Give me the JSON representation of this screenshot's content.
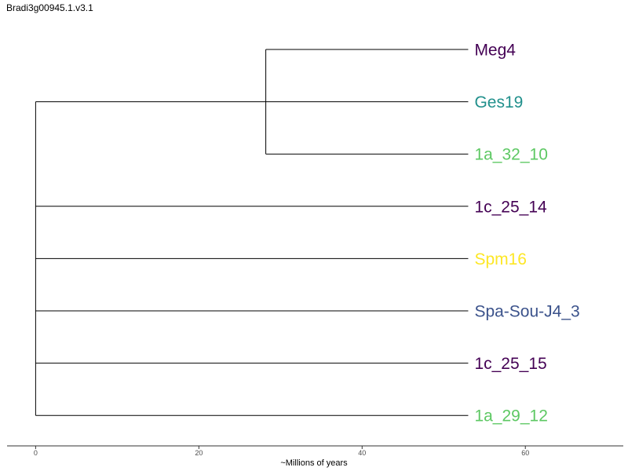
{
  "title": "Bradi3g00945.1.v3.1",
  "axis": {
    "label": "~Millions of years",
    "min": -3.5,
    "max": 72,
    "ticks": [
      0,
      20,
      40,
      60
    ]
  },
  "colors": {
    "branch": "#000000",
    "axis_line": "#333333"
  },
  "tree": {
    "root_x": 0,
    "clade_x": 28.2,
    "tip_x": 53
  },
  "tips": [
    {
      "label": "Meg4",
      "color": "#440154",
      "parent": "clade"
    },
    {
      "label": "Ges19",
      "color": "#21908C",
      "parent": "clade"
    },
    {
      "label": "1a_32_10",
      "color": "#5DC863",
      "parent": "clade"
    },
    {
      "label": "1c_25_14",
      "color": "#440154",
      "parent": "root"
    },
    {
      "label": "Spm16",
      "color": "#FDE725",
      "parent": "root"
    },
    {
      "label": "Spa-Sou-J4_3",
      "color": "#3B528B",
      "parent": "root"
    },
    {
      "label": "1c_25_15",
      "color": "#440154",
      "parent": "root"
    },
    {
      "label": "1a_29_12",
      "color": "#5DC863",
      "parent": "root"
    }
  ]
}
